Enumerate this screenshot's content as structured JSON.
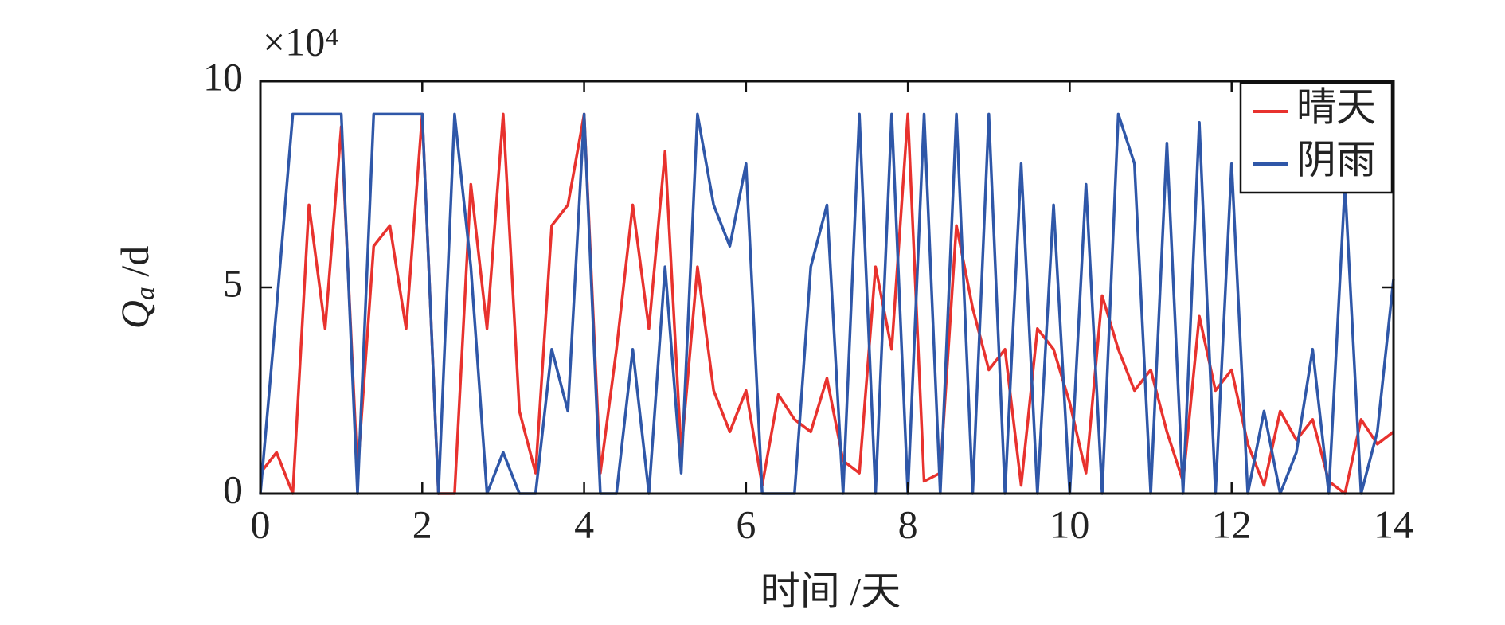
{
  "chart_data": {
    "type": "line",
    "y_multiplier": "×10⁴",
    "ylabel": {
      "symbol": "Q",
      "subscript": "a",
      "unit": " /d"
    },
    "xlabel": "时间 /天",
    "xlim": [
      0,
      14
    ],
    "xticks": [
      0,
      2,
      4,
      6,
      8,
      10,
      12,
      14
    ],
    "ylim": [
      0,
      10
    ],
    "yticks": [
      0,
      5,
      10
    ],
    "legend": "upper right",
    "x": [
      0,
      0.2,
      0.4,
      0.6,
      0.8,
      1.0,
      1.2,
      1.4,
      1.6,
      1.8,
      2.0,
      2.2,
      2.4,
      2.6,
      2.8,
      3.0,
      3.2,
      3.4,
      3.6,
      3.8,
      4.0,
      4.2,
      4.4,
      4.6,
      4.8,
      5.0,
      5.2,
      5.4,
      5.6,
      5.8,
      6.0,
      6.2,
      6.4,
      6.6,
      6.8,
      7.0,
      7.2,
      7.4,
      7.6,
      7.8,
      8.0,
      8.2,
      8.4,
      8.6,
      8.8,
      9.0,
      9.2,
      9.4,
      9.6,
      9.8,
      10.0,
      10.2,
      10.4,
      10.6,
      10.8,
      11.0,
      11.2,
      11.4,
      11.6,
      11.8,
      12.0,
      12.2,
      12.4,
      12.6,
      12.8,
      13.0,
      13.2,
      13.4,
      13.6,
      13.8,
      14.0
    ],
    "series": [
      {
        "name": "晴天",
        "color": "#e8322e",
        "values": [
          0.5,
          1.0,
          0,
          7.0,
          4.0,
          8.9,
          0.5,
          6.0,
          6.5,
          4.0,
          9.2,
          0,
          0,
          7.5,
          4.0,
          9.2,
          2.0,
          0.5,
          6.5,
          7.0,
          9.2,
          0.5,
          3.5,
          7.0,
          4.0,
          8.3,
          1.0,
          5.5,
          2.5,
          1.5,
          2.5,
          0.2,
          2.4,
          1.8,
          1.5,
          2.8,
          0.8,
          0.5,
          5.5,
          3.5,
          9.2,
          0.3,
          0.5,
          6.5,
          4.5,
          3.0,
          3.5,
          0.2,
          4.0,
          3.5,
          2.2,
          0.5,
          4.8,
          3.5,
          2.5,
          3.0,
          1.5,
          0.3,
          4.3,
          2.5,
          3.0,
          1.2,
          0.2,
          2.0,
          1.3,
          1.8,
          0.3,
          0,
          1.8,
          1.2,
          1.5
        ]
      },
      {
        "name": "阴雨",
        "color": "#2f57a8",
        "values": [
          0,
          4.5,
          9.2,
          9.2,
          9.2,
          9.2,
          0,
          9.2,
          9.2,
          9.2,
          9.2,
          0,
          9.2,
          5.5,
          0,
          1.0,
          0,
          0,
          3.5,
          2.0,
          9.2,
          0,
          0,
          3.5,
          0,
          5.5,
          0.5,
          9.2,
          7.0,
          6.0,
          8.0,
          0,
          0,
          0,
          5.5,
          7.0,
          0,
          9.2,
          0,
          9.2,
          0,
          9.2,
          0,
          9.2,
          0,
          9.2,
          0,
          8.0,
          0,
          7.0,
          0,
          7.5,
          0,
          9.2,
          8.0,
          0,
          8.5,
          0,
          9.0,
          0,
          8.0,
          0,
          2.0,
          0,
          1.0,
          3.5,
          0,
          7.5,
          0,
          1.5,
          5.2
        ]
      }
    ]
  }
}
